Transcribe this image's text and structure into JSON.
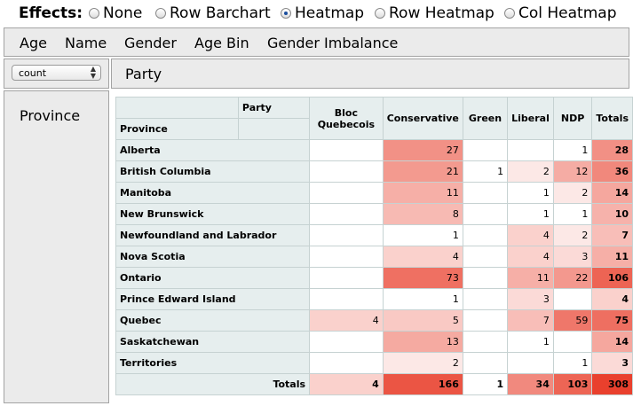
{
  "effects": {
    "label": "Effects:",
    "options": [
      "None",
      "Row Barchart",
      "Heatmap",
      "Row Heatmap",
      "Col Heatmap"
    ],
    "selected": "Heatmap"
  },
  "attributes": [
    "Age",
    "Name",
    "Gender",
    "Age Bin",
    "Gender Imbalance"
  ],
  "aggregator": {
    "value": "count"
  },
  "col_attr": "Party",
  "row_attr": "Province",
  "table": {
    "corner_col_label": "Party",
    "corner_row_label": "Province",
    "columns": [
      "Bloc Quebecois",
      "Conservative",
      "Green",
      "Liberal",
      "NDP"
    ],
    "totals_label": "Totals",
    "rows": [
      {
        "name": "Alberta",
        "values": [
          "",
          "27",
          "",
          "",
          "1"
        ],
        "total": "28"
      },
      {
        "name": "British Columbia",
        "values": [
          "",
          "21",
          "1",
          "2",
          "12"
        ],
        "total": "36"
      },
      {
        "name": "Manitoba",
        "values": [
          "",
          "11",
          "",
          "1",
          "2"
        ],
        "total": "14"
      },
      {
        "name": "New Brunswick",
        "values": [
          "",
          "8",
          "",
          "1",
          "1"
        ],
        "total": "10"
      },
      {
        "name": "Newfoundland and Labrador",
        "values": [
          "",
          "1",
          "",
          "4",
          "2"
        ],
        "total": "7"
      },
      {
        "name": "Nova Scotia",
        "values": [
          "",
          "4",
          "",
          "4",
          "3"
        ],
        "total": "11"
      },
      {
        "name": "Ontario",
        "values": [
          "",
          "73",
          "",
          "11",
          "22"
        ],
        "total": "106"
      },
      {
        "name": "Prince Edward Island",
        "values": [
          "",
          "1",
          "",
          "3",
          ""
        ],
        "total": "4"
      },
      {
        "name": "Quebec",
        "values": [
          "4",
          "5",
          "",
          "7",
          "59"
        ],
        "total": "75"
      },
      {
        "name": "Saskatchewan",
        "values": [
          "",
          "13",
          "",
          "1",
          ""
        ],
        "total": "14"
      },
      {
        "name": "Territories",
        "values": [
          "",
          "2",
          "",
          "",
          "1"
        ],
        "total": "3"
      }
    ],
    "col_totals": [
      "4",
      "166",
      "1",
      "34",
      "103"
    ],
    "grand_total": "308"
  },
  "colors": {
    "heat_low": "#ffffff",
    "heat_high": "#e9402d"
  }
}
